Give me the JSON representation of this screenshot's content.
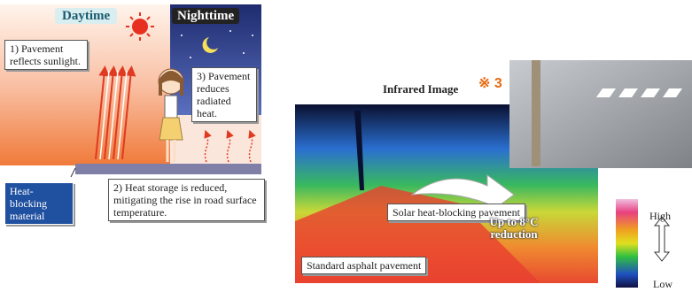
{
  "left_panel": {
    "daytime_label": "Daytime",
    "nighttime_label": "Nighttime",
    "callouts": [
      "1) Pavement reflects sunlight.",
      "3) Pavement reduces radiated heat.",
      "2) Heat storage is reduced, mitigating the rise in road surface temperature."
    ],
    "material_label": "Heat-blocking material"
  },
  "right_panel": {
    "title": "Infrared Image",
    "note": "※ 3",
    "solar_label": "Solar heat-blocking pavement",
    "standard_label": "Standard asphalt pavement",
    "reduction": "Up to 8°C reduction",
    "legend": {
      "high": "High",
      "low": "Low"
    }
  }
}
